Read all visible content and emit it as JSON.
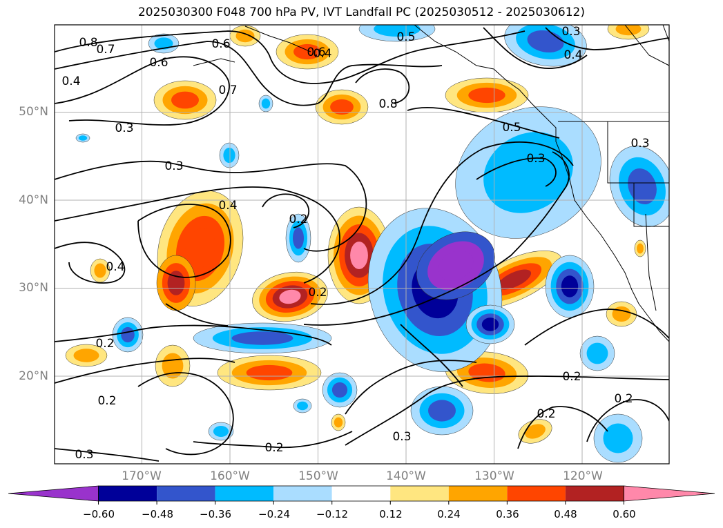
{
  "title": "2025030300 F048 700 hPa PV, IVT Landfall PC (2025030512 - 2025030612)",
  "latitude_labels": [
    "50°N",
    "40°N",
    "30°N",
    "20°N"
  ],
  "longitude_labels": [
    "170°W",
    "160°W",
    "150°W",
    "140°W",
    "130°W",
    "120°W"
  ],
  "colorbar": {
    "tick_labels": [
      "−0.60",
      "−0.48",
      "−0.36",
      "−0.24",
      "−0.12",
      "0.12",
      "0.24",
      "0.36",
      "0.48",
      "0.60"
    ],
    "colors": [
      "#9933cc",
      "#000099",
      "#3355cc",
      "#00bbff",
      "#aaddff",
      "#ffffff",
      "#ffe680",
      "#ffa500",
      "#ff4500",
      "#b22222",
      "#ff88aa"
    ]
  },
  "contour_labels": [
    "0.8",
    "0.7",
    "0.6",
    "0.6",
    "0.7",
    "0.5",
    "0.3",
    "0.4",
    "0.4",
    "0.6",
    "0.8",
    "0.5",
    "0.3",
    "0.3",
    "0.4",
    "0.3",
    "0.2",
    "0.4",
    "0.2",
    "0.2",
    "0.2",
    "0.2",
    "0.3",
    "0.2",
    "0.3",
    "0.2",
    "0.2",
    "0.3",
    "0.4"
  ],
  "chart_data": {
    "type": "map",
    "projection": "Mercator",
    "fields": [
      {
        "name": "IVT Landfall PC",
        "style": "filled contours",
        "levels": [
          -0.6,
          -0.48,
          -0.36,
          -0.24,
          -0.12,
          0.12,
          0.24,
          0.36,
          0.48,
          0.6
        ]
      },
      {
        "name": "700 hPa PV",
        "style": "black contour lines"
      }
    ],
    "lon_ticks": [
      -170,
      -160,
      -150,
      -140,
      -130,
      -120
    ],
    "lat_ticks": [
      20,
      30,
      40,
      50
    ],
    "grid": true
  }
}
